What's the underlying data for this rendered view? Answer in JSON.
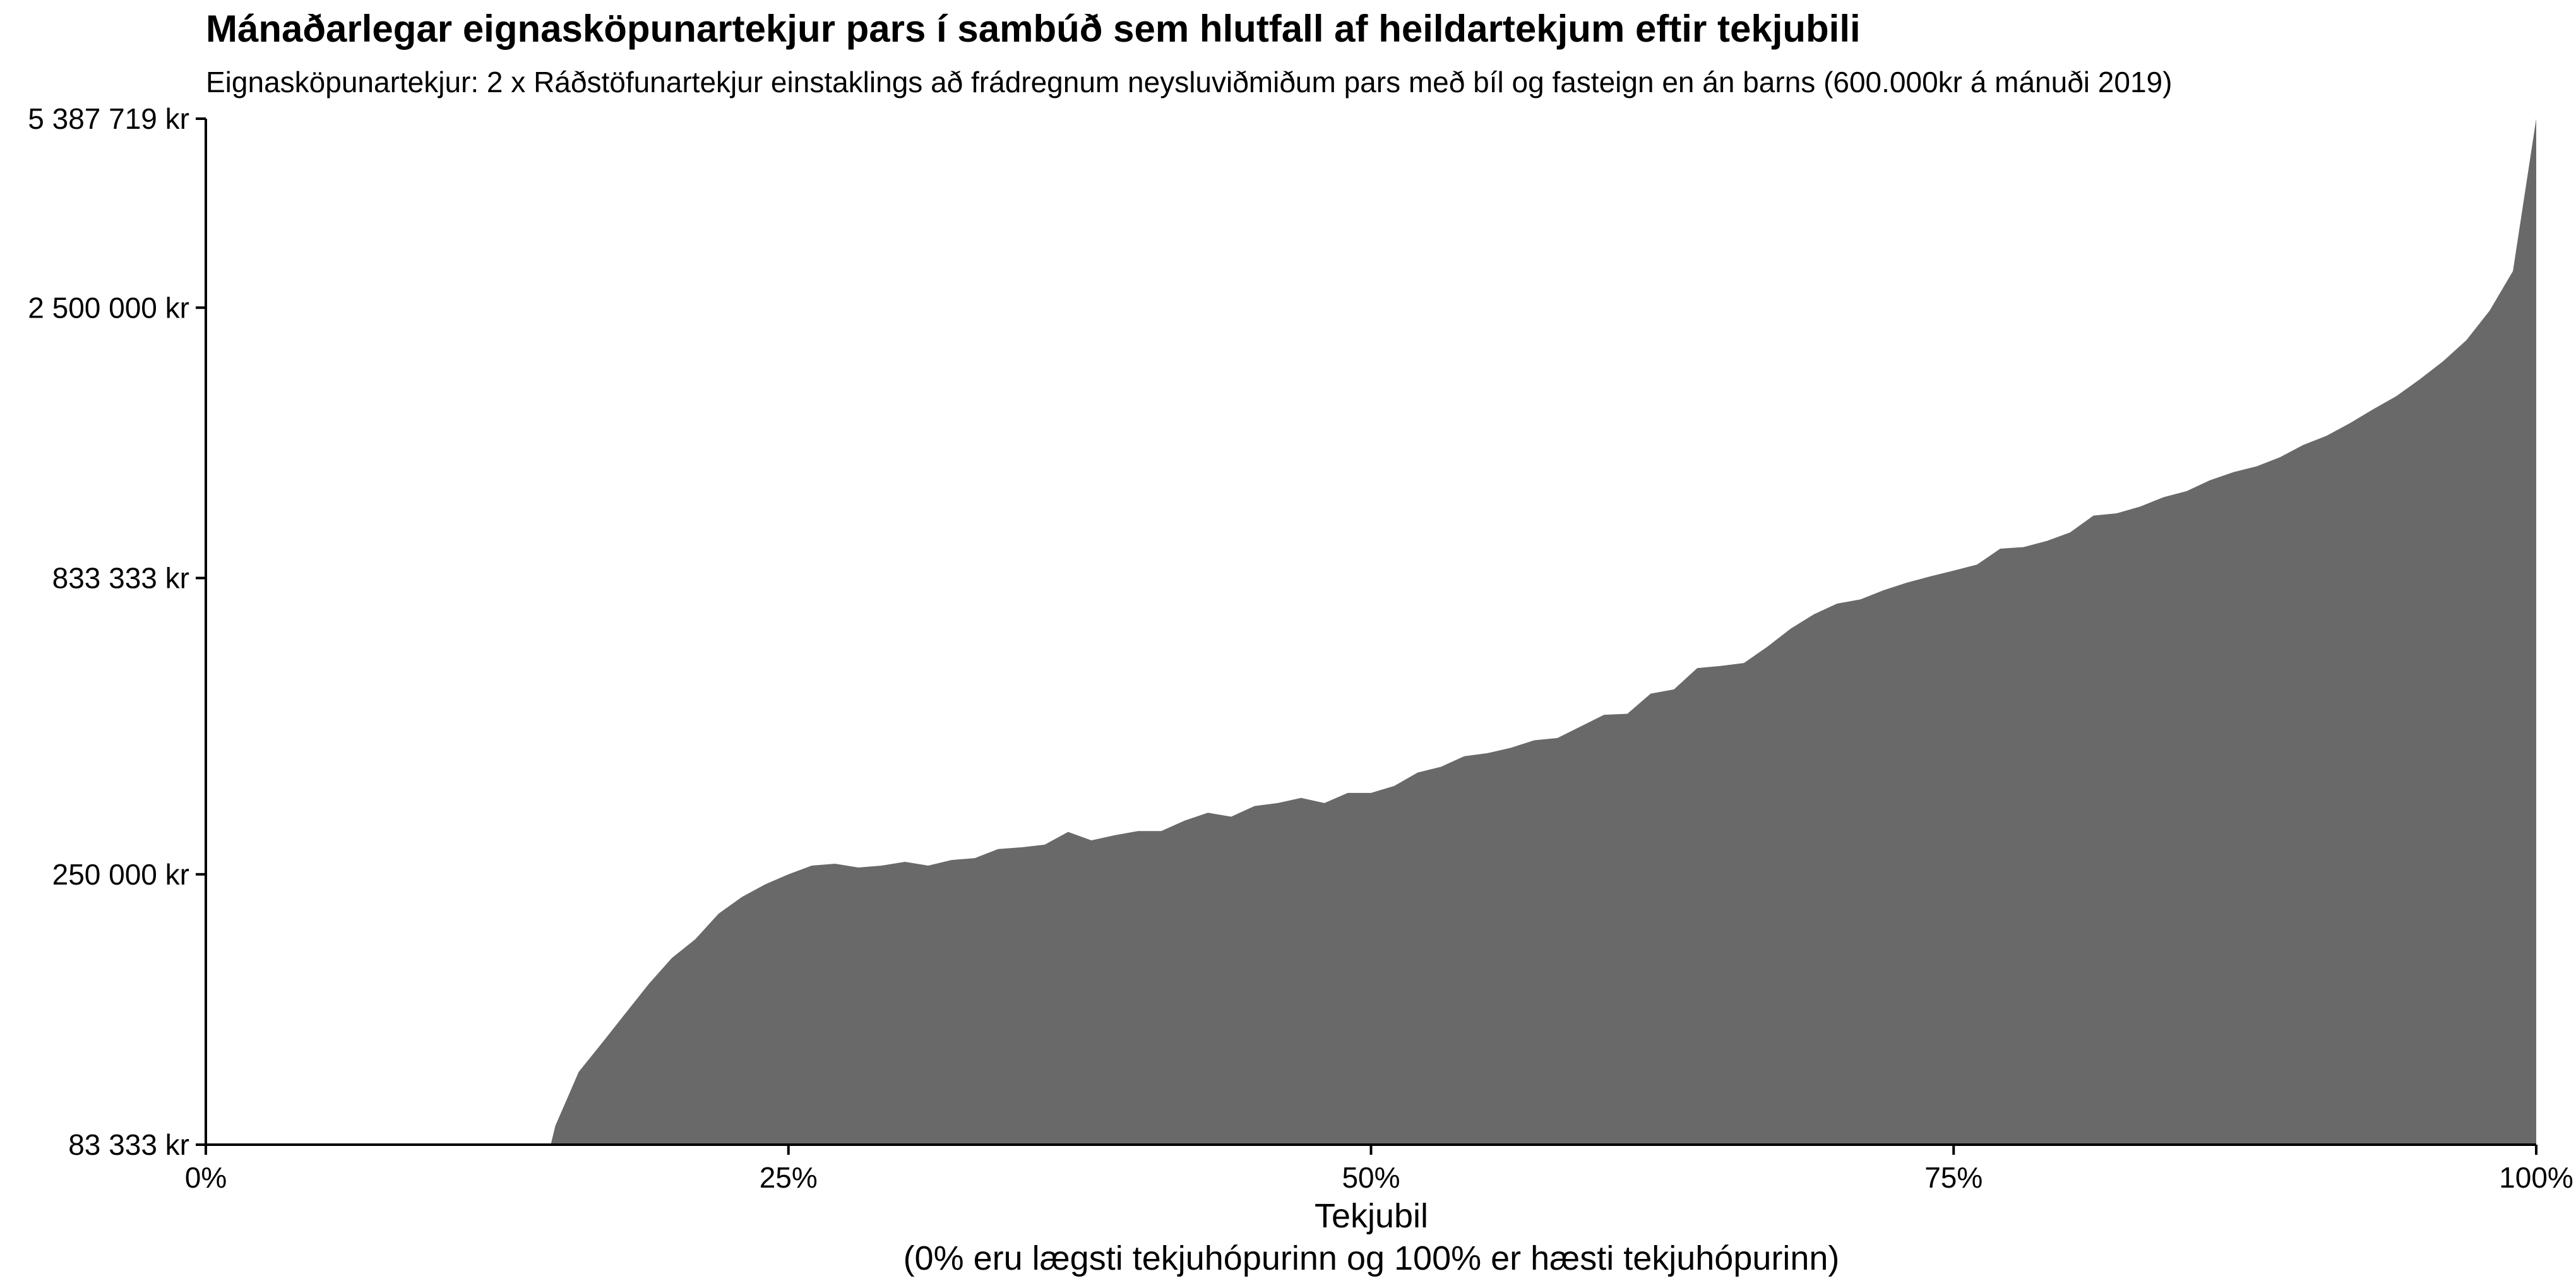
{
  "chart_data": {
    "type": "area",
    "title": "Mánaðarlegar eignasköpunartekjur pars í sambúð sem hlutfall af heildartekjum eftir tekjubili",
    "subtitle": "Eignasköpunartekjur: 2 x Ráðstöfunartekjur einstaklings að frádregnum neysluviðmiðum pars með bíl og fasteign en án barns (600.000kr á mánuði 2019)",
    "xlabel": "Tekjubil",
    "xlabel_note": "(0% eru lægsti tekjuhópurinn og 100% er hæsti tekjuhópurinn)",
    "ylabel": "",
    "x_scale": "linear",
    "y_scale": "log",
    "xlim": [
      0,
      100
    ],
    "ylim": [
      83333,
      5387719
    ],
    "x_ticks": [
      0,
      25,
      50,
      75,
      100
    ],
    "x_tick_labels": [
      "0%",
      "25%",
      "50%",
      "75%",
      "100%"
    ],
    "y_ticks": [
      83333,
      250000,
      833333,
      2500000,
      5387719
    ],
    "y_tick_labels": [
      "83 333 kr",
      "250 000 kr",
      "833 333 kr",
      "2 500 000 kr",
      "5 387 719 kr"
    ],
    "fill_color": "#696969",
    "series": [
      {
        "name": "Eignasköpunartekjur",
        "x": [
          0,
          14.8,
          15,
          16,
          17,
          18,
          19,
          20,
          21,
          22,
          23,
          24,
          25,
          26,
          27,
          28,
          29,
          30,
          31,
          32,
          33,
          34,
          35,
          36,
          37,
          38,
          39,
          40,
          41,
          42,
          43,
          44,
          45,
          46,
          47,
          48,
          49,
          50,
          51,
          52,
          53,
          54,
          55,
          56,
          57,
          58,
          59,
          60,
          61,
          62,
          63,
          64,
          65,
          66,
          67,
          68,
          69,
          70,
          71,
          72,
          73,
          74,
          75,
          76,
          77,
          78,
          79,
          80,
          81,
          82,
          83,
          84,
          85,
          86,
          87,
          88,
          89,
          90,
          91,
          92,
          93,
          94,
          95,
          96,
          97,
          98,
          99,
          100
        ],
        "values": [
          83333,
          83333,
          90000,
          112000,
          126000,
          142000,
          160000,
          178000,
          192000,
          213000,
          228000,
          240000,
          250000,
          259000,
          261000,
          257000,
          259000,
          263000,
          259000,
          265000,
          267000,
          277000,
          279000,
          282000,
          297000,
          287000,
          293000,
          298000,
          298000,
          311000,
          321000,
          316000,
          330000,
          334000,
          341000,
          334000,
          348000,
          348000,
          358000,
          378000,
          387000,
          404000,
          409000,
          418000,
          431000,
          435000,
          456000,
          478000,
          480000,
          521000,
          530000,
          578000,
          583000,
          590000,
          630000,
          678000,
          719000,
          751000,
          764000,
          793000,
          818000,
          839000,
          859000,
          880000,
          939000,
          945000,
          969000,
          1003000,
          1074000,
          1084000,
          1114000,
          1157000,
          1186000,
          1240000,
          1281000,
          1312000,
          1361000,
          1431000,
          1485000,
          1563000,
          1654000,
          1745000,
          1868000,
          2010000,
          2190000,
          2470000,
          2900000,
          5387719
        ]
      }
    ]
  }
}
